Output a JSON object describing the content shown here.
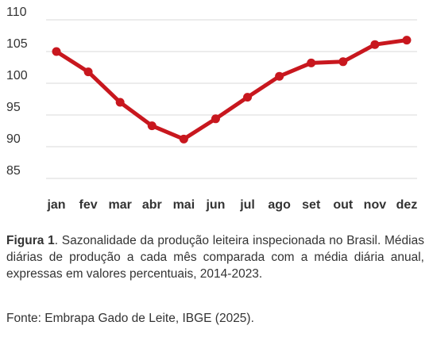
{
  "chart_data": {
    "type": "line",
    "categories": [
      "jan",
      "fev",
      "mar",
      "abr",
      "mai",
      "jun",
      "jul",
      "ago",
      "set",
      "out",
      "nov",
      "dez"
    ],
    "series": [
      {
        "values": [
          105.0,
          101.8,
          97.0,
          93.3,
          91.2,
          94.4,
          97.8,
          101.1,
          103.2,
          103.4,
          106.1,
          106.8
        ],
        "color": "#c8171e"
      }
    ],
    "yticks": [
      85,
      90,
      95,
      100,
      105,
      110
    ],
    "ylim": [
      85,
      110
    ],
    "grid": true,
    "legend": "none"
  },
  "caption": {
    "label": "Figura 1",
    "text": ". Sazonalidade da produção leiteira inspecionada no Brasil. Médias diárias de produção a cada mês comparada com a média diária anual, expressas em valores percentuais, 2014-2023."
  },
  "source": "Fonte: Embrapa Gado de Leite, IBGE (2025)."
}
